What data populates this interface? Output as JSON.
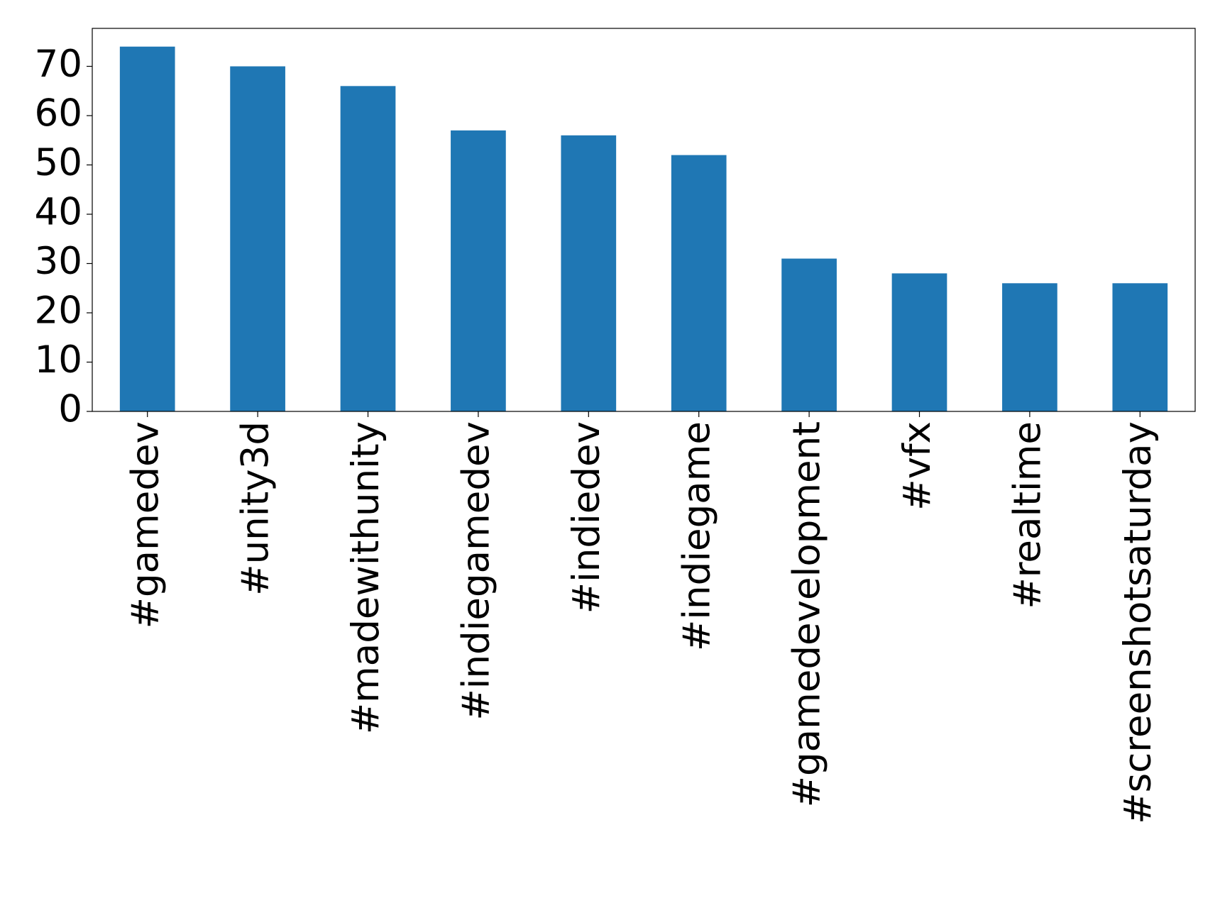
{
  "chart_data": {
    "type": "bar",
    "categories": [
      "#gamedev",
      "#unity3d",
      "#madewithunity",
      "#indiegamedev",
      "#indiedev",
      "#indiegame",
      "#gamedevelopment",
      "#vfx",
      "#realtime",
      "#screenshotsaturday"
    ],
    "values": [
      74,
      70,
      66,
      57,
      56,
      52,
      31,
      28,
      26,
      26
    ],
    "color": "#1f77b4",
    "ylim": [
      0,
      77.7
    ],
    "yticks": [
      0,
      10,
      20,
      30,
      40,
      50,
      60,
      70
    ],
    "grid": false
  }
}
